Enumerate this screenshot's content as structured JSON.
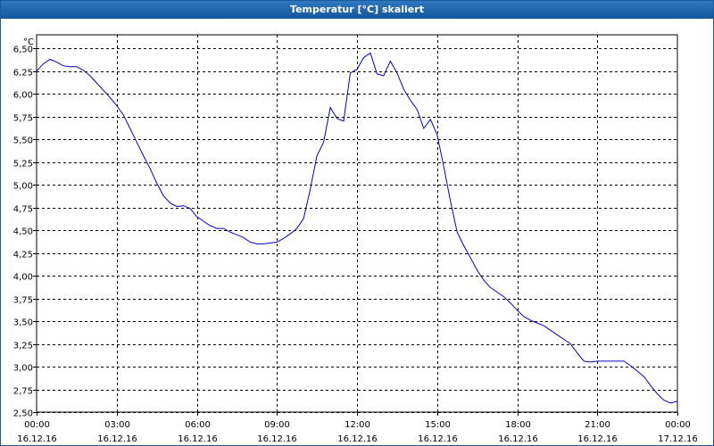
{
  "window": {
    "title": "Temperatur [°C] skaliert"
  },
  "chart_data": {
    "type": "line",
    "title": "Temperatur [°C] skaliert",
    "ylabel": "°C",
    "xlabel": "",
    "ylim": [
      2.5,
      6.65
    ],
    "xlim": [
      0,
      24
    ],
    "yticks": [
      "2,50",
      "2,75",
      "3,00",
      "3,25",
      "3,50",
      "3,75",
      "4,00",
      "4,25",
      "4,50",
      "4,75",
      "5,00",
      "5,25",
      "5,50",
      "5,75",
      "6,00",
      "6,25",
      "6,50"
    ],
    "xticks": [
      {
        "time": "00:00",
        "date": "16.12.16"
      },
      {
        "time": "03:00",
        "date": "16.12.16"
      },
      {
        "time": "06:00",
        "date": "16.12.16"
      },
      {
        "time": "09:00",
        "date": "16.12.16"
      },
      {
        "time": "12:00",
        "date": "16.12.16"
      },
      {
        "time": "15:00",
        "date": "16.12.16"
      },
      {
        "time": "18:00",
        "date": "16.12.16"
      },
      {
        "time": "21:00",
        "date": "16.12.16"
      },
      {
        "time": "00:00",
        "date": "17.12.16"
      }
    ],
    "grid": true,
    "line_color": "#0000cc",
    "series": [
      {
        "x": [
          0,
          0.25,
          0.5,
          0.75,
          1.0,
          1.25,
          1.5,
          1.75,
          2.0,
          2.25,
          2.5,
          2.75,
          3.0,
          3.25,
          3.5,
          3.75,
          4.0,
          4.25,
          4.5,
          4.75,
          5.0,
          5.25,
          5.5,
          5.75,
          6.0,
          6.25,
          6.5,
          6.75,
          7.0,
          7.25,
          7.5,
          7.75,
          8.0,
          8.25,
          8.5,
          8.75,
          9.0,
          9.25,
          9.5,
          9.75,
          10.0,
          10.25,
          10.5,
          10.75,
          11.0,
          11.25,
          11.5,
          11.75,
          12.0,
          12.25,
          12.5,
          12.75,
          13.0,
          13.25,
          13.5,
          13.75,
          14.0,
          14.25,
          14.5,
          14.75,
          15.0,
          15.25,
          15.5,
          15.75,
          16.0,
          16.25,
          16.5,
          16.75,
          17.0,
          17.25,
          17.5,
          17.75,
          18.0,
          18.25,
          18.5,
          18.75,
          19.0,
          19.25,
          19.5,
          19.75,
          20.0,
          20.25,
          20.5,
          20.75,
          21.0,
          21.25,
          21.5,
          21.75,
          22.0,
          22.25,
          22.5,
          22.75,
          23.0,
          23.25,
          23.5,
          23.75,
          24.0
        ],
        "y": [
          6.25,
          6.33,
          6.38,
          6.35,
          6.31,
          6.3,
          6.3,
          6.26,
          6.2,
          6.12,
          6.04,
          5.96,
          5.87,
          5.77,
          5.62,
          5.47,
          5.32,
          5.18,
          5.02,
          4.88,
          4.8,
          4.76,
          4.77,
          4.74,
          4.65,
          4.6,
          4.55,
          4.52,
          4.52,
          4.48,
          4.45,
          4.42,
          4.37,
          4.35,
          4.35,
          4.36,
          4.37,
          4.41,
          4.46,
          4.52,
          4.63,
          4.95,
          5.32,
          5.47,
          5.85,
          5.73,
          5.7,
          6.23,
          6.27,
          6.4,
          6.45,
          6.22,
          6.2,
          6.36,
          6.23,
          6.05,
          5.93,
          5.83,
          5.62,
          5.72,
          5.55,
          5.2,
          4.82,
          4.48,
          4.33,
          4.2,
          4.06,
          3.95,
          3.87,
          3.82,
          3.77,
          3.7,
          3.62,
          3.55,
          3.51,
          3.48,
          3.45,
          3.4,
          3.35,
          3.3,
          3.25,
          3.15,
          3.06,
          3.05,
          3.06,
          3.06,
          3.06,
          3.06,
          3.06,
          3.01,
          2.95,
          2.89,
          2.79,
          2.7,
          2.63,
          2.6,
          2.62
        ]
      }
    ]
  }
}
